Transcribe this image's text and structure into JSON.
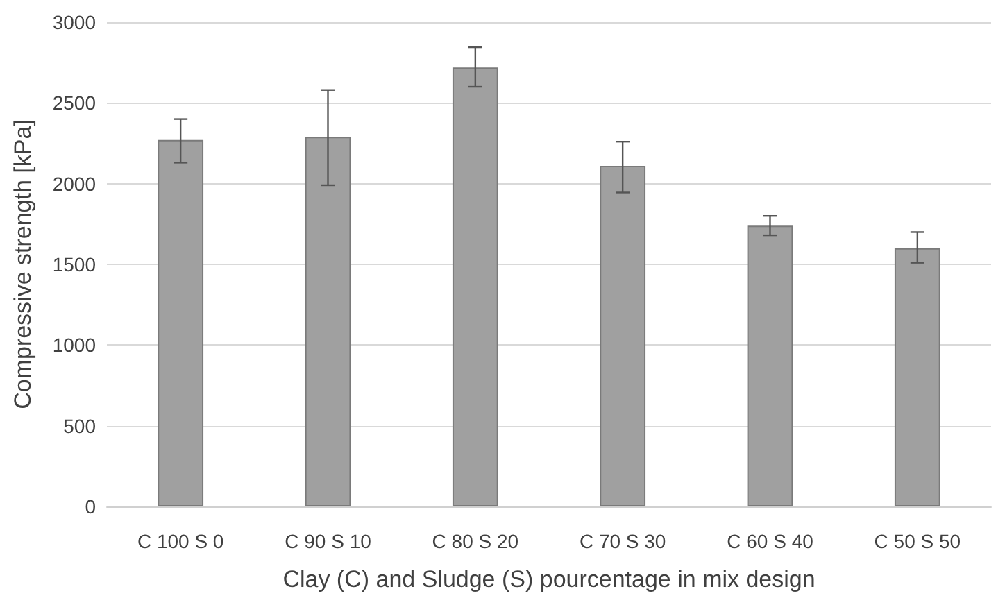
{
  "chart_data": {
    "type": "bar",
    "xlabel": "Clay (C) and Sludge (S) pourcentage in mix design",
    "ylabel": "Compressive strength [kPa]",
    "categories": [
      "C 100 S 0",
      "C 90 S 10",
      "C 80 S 20",
      "C 70 S 30",
      "C 60 S 40",
      "C 50 S 50"
    ],
    "values": [
      2270,
      2290,
      2720,
      2110,
      1740,
      1600
    ],
    "errors": [
      [
        2130,
        2400
      ],
      [
        1990,
        2580
      ],
      [
        2600,
        2845
      ],
      [
        1945,
        2260
      ],
      [
        1680,
        1800
      ],
      [
        1510,
        1700
      ]
    ],
    "color": "#a0a0a0",
    "ylim": [
      0,
      3000
    ],
    "yticks": [
      0,
      500,
      1000,
      1500,
      2000,
      2500,
      3000
    ],
    "grid": "y"
  }
}
